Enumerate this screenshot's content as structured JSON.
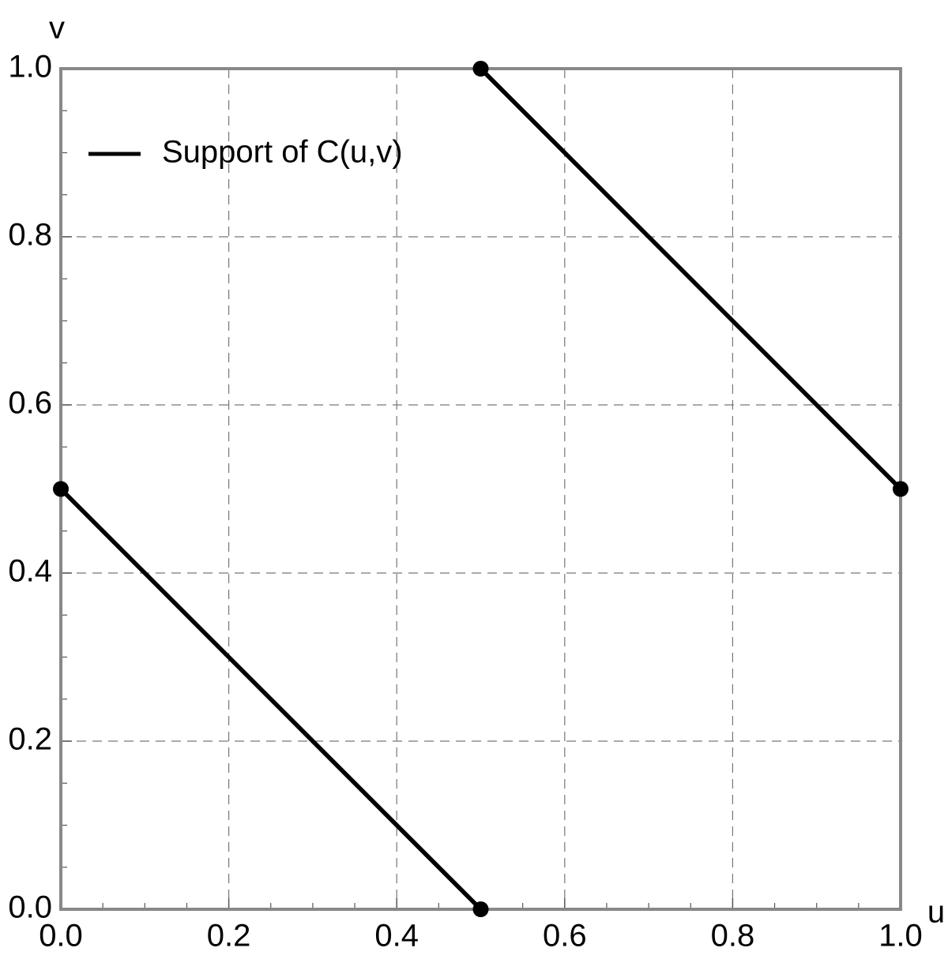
{
  "chart_data": {
    "type": "line",
    "xlabel": "u",
    "ylabel": "v",
    "x": [
      0,
      0.5,
      null,
      0.5,
      1
    ],
    "series": [
      {
        "name": "Support of C(u,v)",
        "color": "#000000",
        "values": [
          0.5,
          0,
          null,
          1,
          0.5
        ]
      }
    ],
    "markers": true,
    "xlim": [
      0,
      1
    ],
    "ylim": [
      0,
      1
    ],
    "xticks": [
      {
        "value": 0,
        "label": "0.0"
      },
      0.2,
      0.4,
      0.6,
      0.8,
      {
        "value": 1,
        "label": "1.0"
      }
    ],
    "yticks": [
      {
        "value": 0,
        "label": "0.0"
      },
      0.2,
      0.4,
      0.6,
      0.8,
      {
        "value": 1,
        "label": "1.0"
      }
    ],
    "grid": true,
    "legend": "upper left"
  }
}
